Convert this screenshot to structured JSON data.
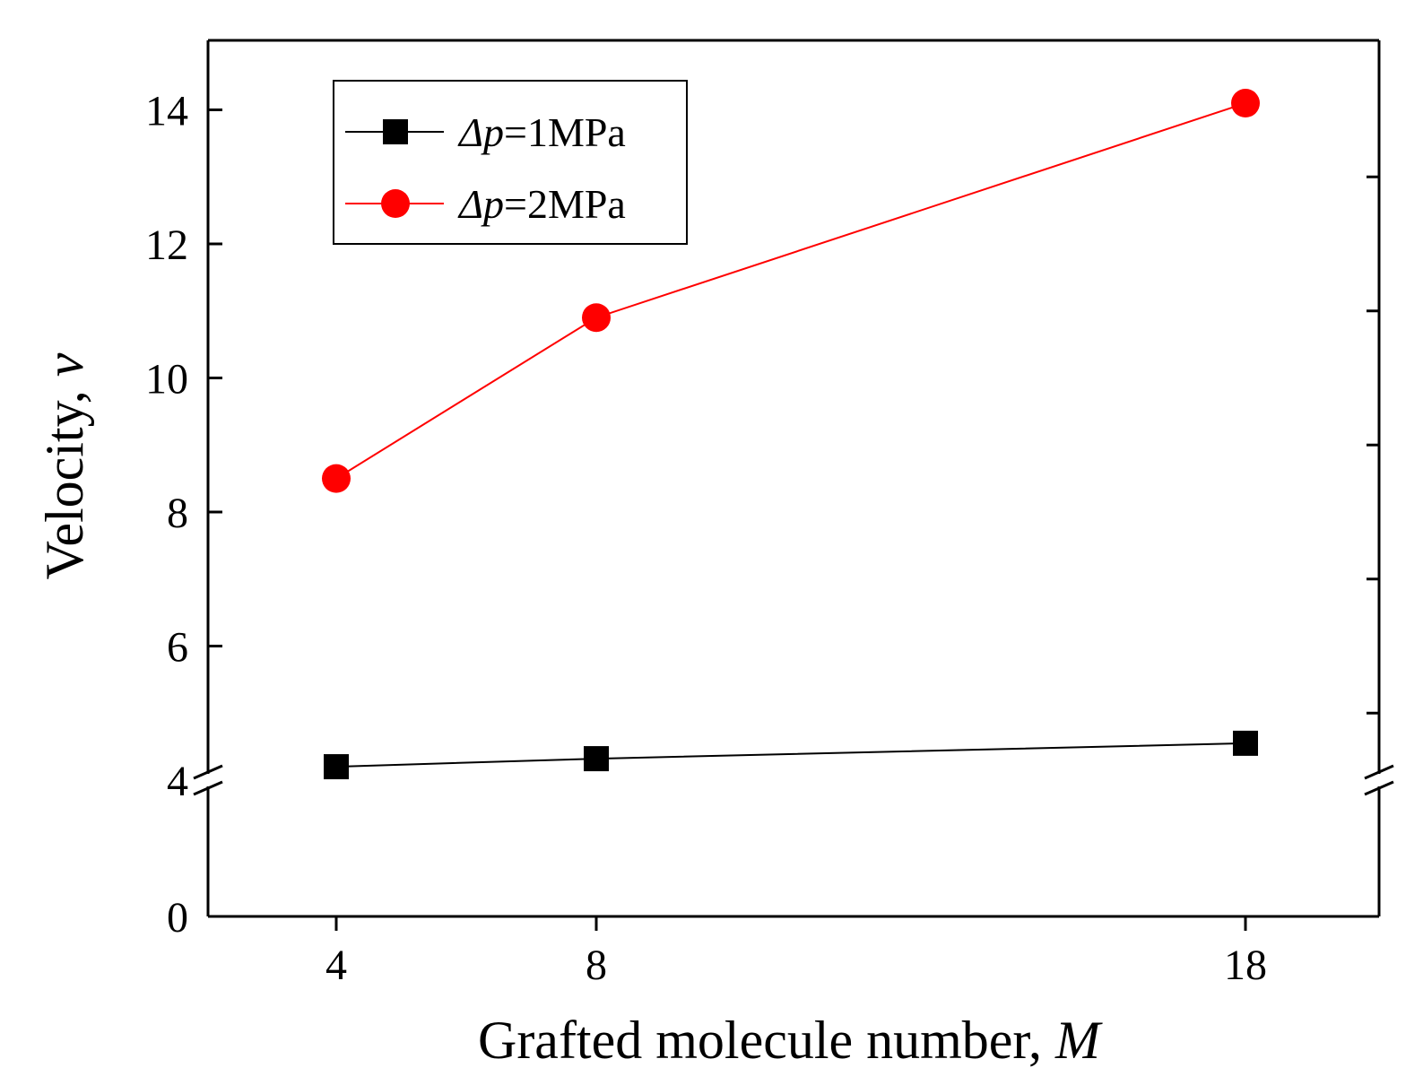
{
  "chart_data": {
    "type": "line",
    "xlabel": "Grafted molecule number, ",
    "xlabel_var": "M",
    "ylabel": "Velocity, ",
    "ylabel_var": "v",
    "x": [
      4,
      8,
      18
    ],
    "x_tick_labels": [
      "4",
      "8",
      "18"
    ],
    "y_tick_labels_upper": [
      "4",
      "6",
      "8",
      "10",
      "12",
      "14"
    ],
    "y_tick_labels_lower": [
      "0"
    ],
    "y_break": {
      "lower_range": [
        0,
        4
      ],
      "upper_range": [
        4,
        15
      ]
    },
    "ylim": [
      0,
      15
    ],
    "legend_position": "top-left",
    "series": [
      {
        "name_prefix": "Δp",
        "name_suffix": "=1MPa",
        "values": [
          4.2,
          4.32,
          4.55
        ],
        "color": "#000000",
        "marker": "square"
      },
      {
        "name_prefix": "Δp",
        "name_suffix": "=2MPa",
        "values": [
          8.5,
          10.9,
          14.1
        ],
        "color": "#ff0000",
        "marker": "circle"
      }
    ]
  }
}
